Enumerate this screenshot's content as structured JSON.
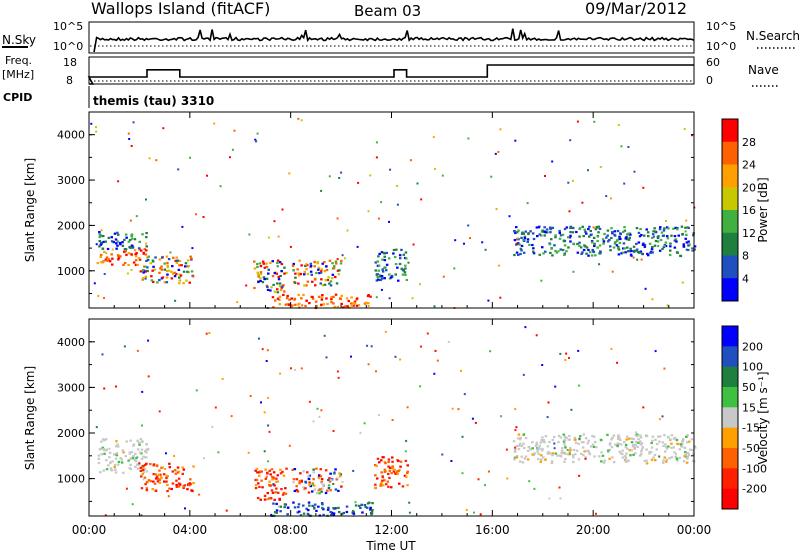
{
  "header": {
    "station": "Wallops Island (fitACF)",
    "beam": "Beam 03",
    "date": "09/Mar/2012"
  },
  "aux_panels": {
    "nsky_label": "N.Sky",
    "nsky_ticks": [
      "10^5",
      "10^0"
    ],
    "nsearch_label": "N.Search",
    "nsearch_ticks": [
      "10^5",
      "10^0"
    ],
    "freq_label": "Freq.",
    "freq_unit": "[MHz]",
    "freq_ticks": [
      "18",
      "8"
    ],
    "nave_label": "Nave",
    "nave_ticks": [
      "60",
      "0"
    ],
    "cpid_label": "CPID",
    "cpid_value": "themis (tau) 3310"
  },
  "chart_data": [
    {
      "type": "heatmap",
      "name": "power-panel",
      "ylabel": "Slant Range [km]",
      "yticks": [
        "1000",
        "2000",
        "3000",
        "4000"
      ],
      "ylim": [
        180,
        4500
      ],
      "xlim": [
        0,
        24
      ],
      "colorbar": {
        "label": "Power [dB]",
        "ticks": [
          "4",
          "8",
          "12",
          "16",
          "20",
          "24",
          "28"
        ],
        "range": [
          0,
          30
        ],
        "colors": [
          "#0000ff",
          "#2050c0",
          "#1f7f3f",
          "#40b040",
          "#c8c800",
          "#ffa000",
          "#ff6000",
          "#ff0000"
        ]
      },
      "echo_regions": [
        {
          "t0": 0.3,
          "t1": 2.3,
          "r0": 1150,
          "r1": 1500,
          "level": "high"
        },
        {
          "t0": 0.3,
          "t1": 2.3,
          "r0": 1500,
          "r1": 1900,
          "level": "mid"
        },
        {
          "t0": 2.0,
          "t1": 4.1,
          "r0": 750,
          "r1": 1350,
          "level": "mixed"
        },
        {
          "t0": 6.5,
          "t1": 7.8,
          "r0": 550,
          "r1": 1250,
          "level": "mixed"
        },
        {
          "t0": 7.2,
          "t1": 11.2,
          "r0": 200,
          "r1": 500,
          "level": "high"
        },
        {
          "t0": 8.0,
          "t1": 10.0,
          "r0": 700,
          "r1": 1250,
          "level": "mixed"
        },
        {
          "t0": 11.3,
          "t1": 12.6,
          "r0": 800,
          "r1": 1500,
          "level": "mid"
        },
        {
          "t0": 16.8,
          "t1": 24.0,
          "r0": 1350,
          "r1": 2000,
          "level": "mid"
        }
      ]
    },
    {
      "type": "heatmap",
      "name": "velocity-panel",
      "ylabel": "Slant Range [km]",
      "yticks": [
        "1000",
        "2000",
        "3000",
        "4000"
      ],
      "ylim": [
        180,
        4500
      ],
      "xlim": [
        0,
        24
      ],
      "xlabel": "Time UT",
      "xticks": [
        "00:00",
        "04:00",
        "08:00",
        "12:00",
        "16:00",
        "20:00",
        "00:00"
      ],
      "colorbar": {
        "label": "Velocity [m s⁻¹]",
        "ticks": [
          "200",
          "100",
          "50",
          "15",
          "-15",
          "-50",
          "-100",
          "-200"
        ],
        "colors": [
          "#0000ff",
          "#2050c0",
          "#1f7f3f",
          "#40c040",
          "#c8c8c8",
          "#ffa000",
          "#ff6000",
          "#ff2000",
          "#ff0000"
        ]
      },
      "echo_regions": [
        {
          "t0": 0.3,
          "t1": 2.3,
          "r0": 1150,
          "r1": 1900,
          "level": "low"
        },
        {
          "t0": 2.0,
          "t1": 4.1,
          "r0": 750,
          "r1": 1350,
          "level": "neg"
        },
        {
          "t0": 6.5,
          "t1": 7.8,
          "r0": 550,
          "r1": 1250,
          "level": "neg"
        },
        {
          "t0": 7.2,
          "t1": 11.2,
          "r0": 200,
          "r1": 500,
          "level": "pos"
        },
        {
          "t0": 8.0,
          "t1": 10.0,
          "r0": 700,
          "r1": 1250,
          "level": "mixed"
        },
        {
          "t0": 11.3,
          "t1": 12.6,
          "r0": 800,
          "r1": 1500,
          "level": "neg"
        },
        {
          "t0": 16.8,
          "t1": 24.0,
          "r0": 1350,
          "r1": 2000,
          "level": "low"
        }
      ]
    }
  ],
  "noise_series": {
    "freq_steps": [
      {
        "t0": 0.0,
        "t1": 2.3,
        "level": 0.25
      },
      {
        "t0": 2.3,
        "t1": 3.6,
        "level": 0.55
      },
      {
        "t0": 3.6,
        "t1": 12.1,
        "level": 0.25
      },
      {
        "t0": 12.1,
        "t1": 12.6,
        "level": 0.55
      },
      {
        "t0": 12.6,
        "t1": 15.8,
        "level": 0.25
      },
      {
        "t0": 15.8,
        "t1": 24.0,
        "level": 0.75
      }
    ]
  }
}
